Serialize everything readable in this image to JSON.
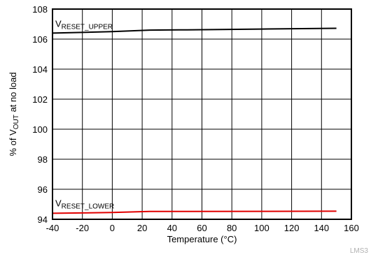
{
  "chart_data": {
    "type": "line",
    "title": "",
    "xlabel": "Temperature (°C)",
    "ylabel_parts": [
      "% of V",
      "OUT",
      " at no load"
    ],
    "xlim": [
      -40,
      160
    ],
    "ylim": [
      94,
      108
    ],
    "xticks": [
      -40,
      -20,
      0,
      20,
      40,
      60,
      80,
      100,
      120,
      140,
      160
    ],
    "yticks": [
      94,
      96,
      98,
      100,
      102,
      104,
      106,
      108
    ],
    "grid": true,
    "series": [
      {
        "label_main": "V",
        "label_sub": "RESET_UPPER",
        "color": "#000000",
        "x": [
          -40,
          0,
          25,
          50,
          100,
          150
        ],
        "y": [
          106.4,
          106.5,
          106.6,
          106.62,
          106.67,
          106.72
        ]
      },
      {
        "label_main": "V",
        "label_sub": "RESET_LOWER",
        "color": "#e00000",
        "x": [
          -40,
          0,
          25,
          50,
          100,
          150
        ],
        "y": [
          94.4,
          94.45,
          94.52,
          94.52,
          94.53,
          94.54
        ]
      }
    ]
  },
  "watermark": "LMS3"
}
